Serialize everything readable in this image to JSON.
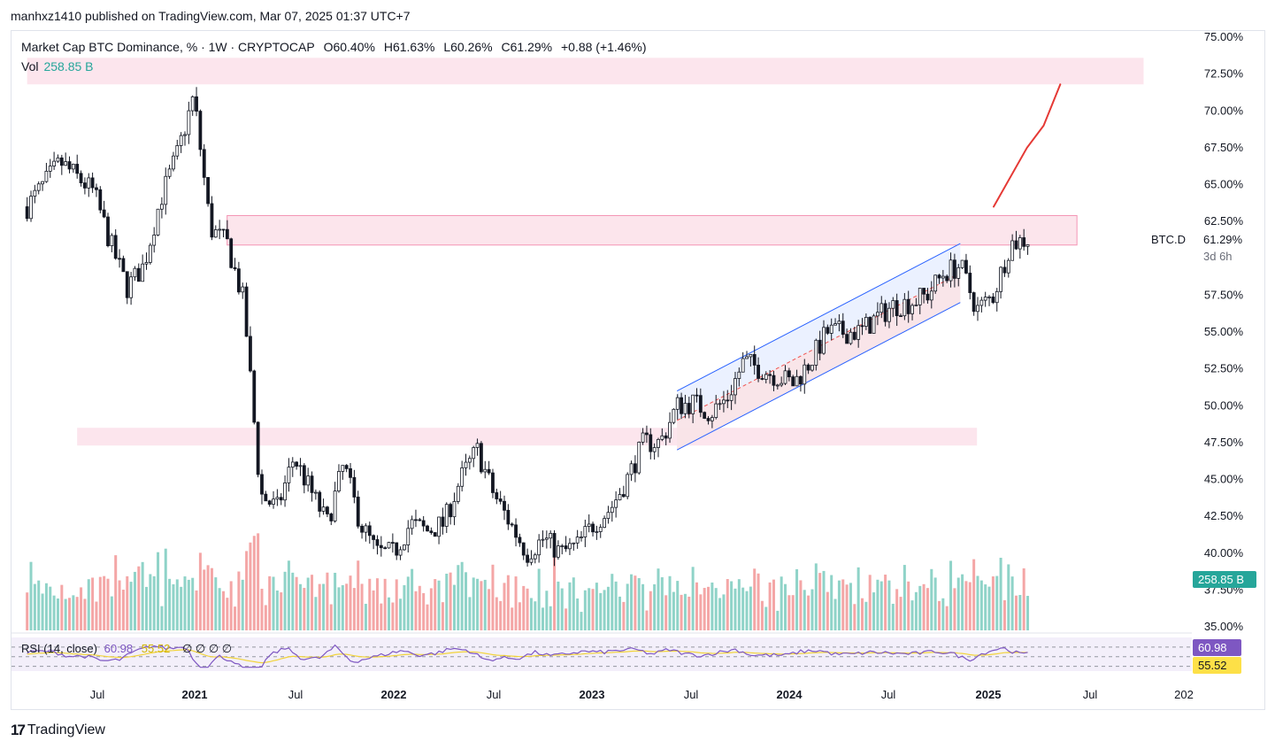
{
  "publisher": "manhxz1410 published on TradingView.com, Mar 07, 2025 01:37 UTC+7",
  "legend": {
    "title": "Market Cap BTC Dominance, % · 1W · CRYPTOCAP",
    "open": "O60.40%",
    "high": "H61.63%",
    "low": "L60.26%",
    "close": "C61.29%",
    "change": "+0.88 (+1.46%)"
  },
  "volume_legend": {
    "label": "Vol",
    "value": "258.85 B"
  },
  "rsi_legend": {
    "label": "RSI (14, close)",
    "rsi_value": "60.98",
    "ma_value": "55.52",
    "extras": "∅ ∅ ∅ ∅"
  },
  "ticker": {
    "label": "BTC.D",
    "value": "61.29%",
    "countdown": "3d 6h"
  },
  "badges": {
    "volume": "258.85 B",
    "rsi": "60.98",
    "rsi_ma": "55.52"
  },
  "brand": {
    "icon": "tradingview-logo-icon",
    "name": "TradingView"
  },
  "colors": {
    "up": "#26a69a",
    "down": "#ef5350",
    "zone": "#f8bbd0",
    "channel": "#2962ff",
    "rsi": "#7e57c2",
    "rsi_ma": "#f2d43a",
    "projection": "#e53935"
  },
  "chart_data": {
    "type": "candlestick",
    "ylabel": "",
    "ylim": [
      35,
      75
    ],
    "y_ticks": [
      "75.00%",
      "72.50%",
      "70.00%",
      "67.50%",
      "65.00%",
      "62.50%",
      "57.50%",
      "55.00%",
      "52.50%",
      "50.00%",
      "47.50%",
      "45.00%",
      "42.50%",
      "40.00%",
      "37.50%",
      "35.00%"
    ],
    "x_ticks": [
      "Jul",
      "2021",
      "Jul",
      "2022",
      "Jul",
      "2023",
      "Jul",
      "2024",
      "Jul",
      "2025",
      "Jul",
      "202"
    ],
    "price_path": [
      {
        "date": "2020-03",
        "v": 63.5
      },
      {
        "date": "2020-05",
        "v": 66.5
      },
      {
        "date": "2020-07",
        "v": 64.5
      },
      {
        "date": "2020-08",
        "v": 61
      },
      {
        "date": "2020-09",
        "v": 58
      },
      {
        "date": "2020-10",
        "v": 59.5
      },
      {
        "date": "2020-11",
        "v": 64
      },
      {
        "date": "2020-12",
        "v": 67
      },
      {
        "date": "2021-01",
        "v": 71
      },
      {
        "date": "2021-02",
        "v": 62
      },
      {
        "date": "2021-03",
        "v": 61
      },
      {
        "date": "2021-04",
        "v": 57
      },
      {
        "date": "2021-05",
        "v": 44
      },
      {
        "date": "2021-06",
        "v": 43
      },
      {
        "date": "2021-07",
        "v": 46.5
      },
      {
        "date": "2021-09",
        "v": 42
      },
      {
        "date": "2021-10",
        "v": 46
      },
      {
        "date": "2021-11",
        "v": 42
      },
      {
        "date": "2021-12",
        "v": 40
      },
      {
        "date": "2022-01",
        "v": 40
      },
      {
        "date": "2022-02",
        "v": 42
      },
      {
        "date": "2022-03",
        "v": 41.5
      },
      {
        "date": "2022-04",
        "v": 42
      },
      {
        "date": "2022-05",
        "v": 45
      },
      {
        "date": "2022-06",
        "v": 47
      },
      {
        "date": "2022-07",
        "v": 44
      },
      {
        "date": "2022-08",
        "v": 42
      },
      {
        "date": "2022-09",
        "v": 40
      },
      {
        "date": "2022-10",
        "v": 41
      },
      {
        "date": "2022-11",
        "v": 40
      },
      {
        "date": "2022-12",
        "v": 40.5
      },
      {
        "date": "2023-01",
        "v": 42
      },
      {
        "date": "2023-02",
        "v": 43
      },
      {
        "date": "2023-03",
        "v": 45
      },
      {
        "date": "2023-04",
        "v": 47.5
      },
      {
        "date": "2023-05",
        "v": 47.5
      },
      {
        "date": "2023-06",
        "v": 50
      },
      {
        "date": "2023-07",
        "v": 50.2
      },
      {
        "date": "2023-08",
        "v": 49.5
      },
      {
        "date": "2023-09",
        "v": 50.5
      },
      {
        "date": "2023-10",
        "v": 53
      },
      {
        "date": "2023-11",
        "v": 52.5
      },
      {
        "date": "2023-12",
        "v": 52
      },
      {
        "date": "2024-01",
        "v": 51.5
      },
      {
        "date": "2024-02",
        "v": 53
      },
      {
        "date": "2024-03",
        "v": 55
      },
      {
        "date": "2024-04",
        "v": 55
      },
      {
        "date": "2024-05",
        "v": 55
      },
      {
        "date": "2024-06",
        "v": 56
      },
      {
        "date": "2024-07",
        "v": 56.8
      },
      {
        "date": "2024-08",
        "v": 57
      },
      {
        "date": "2024-09",
        "v": 57.5
      },
      {
        "date": "2024-10",
        "v": 59
      },
      {
        "date": "2024-11",
        "v": 59.5
      },
      {
        "date": "2024-12",
        "v": 56.5
      },
      {
        "date": "2025-01",
        "v": 57.5
      },
      {
        "date": "2025-02",
        "v": 61
      },
      {
        "date": "2025-03",
        "v": 61.29
      }
    ],
    "zones": [
      {
        "x_from": "2020-03",
        "x_to": "2025-10",
        "y_from": 71.8,
        "y_to": 73.6
      },
      {
        "x_from": "2021-03",
        "x_to": "2025-06",
        "y_from": 60.9,
        "y_to": 62.9
      },
      {
        "x_from": "2020-06",
        "x_to": "2024-12",
        "y_from": 47.3,
        "y_to": 48.5
      }
    ],
    "channel": {
      "upper": [
        {
          "date": "2023-06",
          "v": 51
        },
        {
          "date": "2024-11",
          "v": 61
        }
      ],
      "lower": [
        {
          "date": "2023-06",
          "v": 47
        },
        {
          "date": "2024-11",
          "v": 57
        }
      ]
    },
    "projection": [
      {
        "date": "2025-01",
        "v": 63.5
      },
      {
        "date": "2025-03",
        "v": 67.5
      },
      {
        "date": "2025-04",
        "v": 69
      },
      {
        "date": "2025-05",
        "v": 71.8
      }
    ],
    "rsi_panel": {
      "rsi": 60.98,
      "ma": 55.52,
      "bands": [
        70,
        50,
        30
      ]
    }
  }
}
